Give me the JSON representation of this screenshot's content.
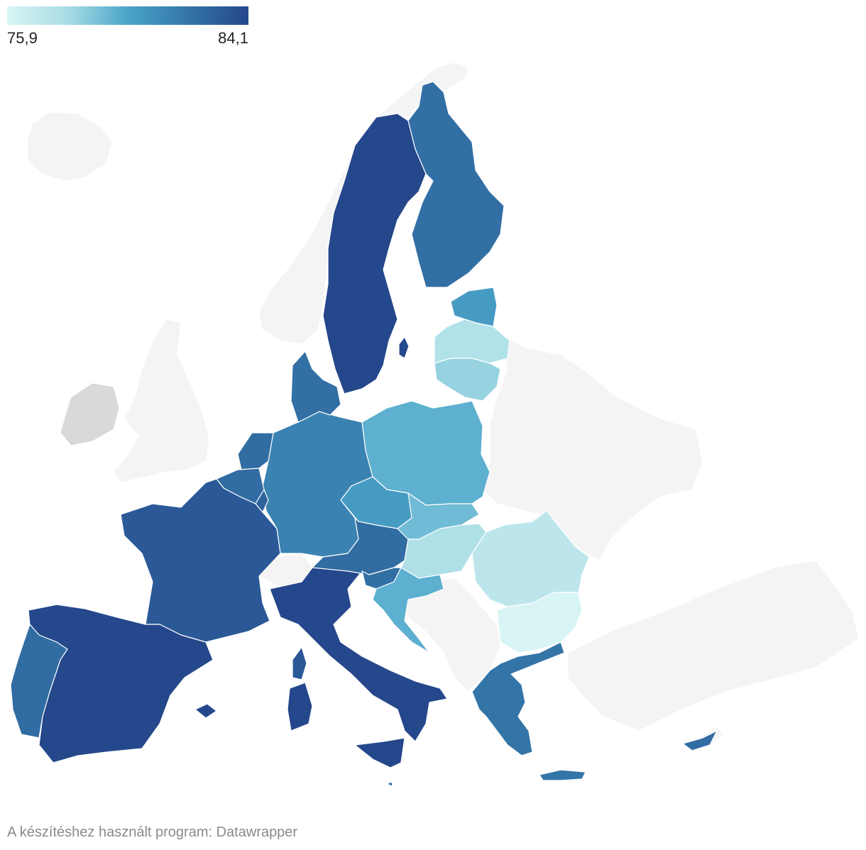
{
  "legend": {
    "min_label": "75,9",
    "max_label": "84,1",
    "min_value": 75.9,
    "max_value": 84.1,
    "stops": [
      "#d8f4f4",
      "#a9dde6",
      "#4aa5c9",
      "#3475a8",
      "#25478b"
    ]
  },
  "footer": {
    "credit": "A készítéshez használt program: Datawrapper"
  },
  "colors": {
    "no_data": "#f4f4f4",
    "ireland": "#d9d9d9",
    "border": "#ffffff"
  },
  "regions": [
    {
      "id": "sweden",
      "shade": 1.0
    },
    {
      "id": "finland",
      "shade": 0.78
    },
    {
      "id": "estonia",
      "shade": 0.55
    },
    {
      "id": "latvia",
      "shade": 0.2
    },
    {
      "id": "lithuania",
      "shade": 0.3
    },
    {
      "id": "poland",
      "shade": 0.45
    },
    {
      "id": "germany",
      "shade": 0.68
    },
    {
      "id": "denmark",
      "shade": 0.78
    },
    {
      "id": "netherlands",
      "shade": 0.8
    },
    {
      "id": "belgium",
      "shade": 0.8
    },
    {
      "id": "luxembourg",
      "shade": 0.85
    },
    {
      "id": "france",
      "shade": 0.9
    },
    {
      "id": "spain",
      "shade": 1.0
    },
    {
      "id": "portugal",
      "shade": 0.8
    },
    {
      "id": "italy",
      "shade": 1.0
    },
    {
      "id": "sicily",
      "shade": 1.0
    },
    {
      "id": "sardinia",
      "shade": 1.0
    },
    {
      "id": "corsica",
      "shade": 0.9
    },
    {
      "id": "czechia",
      "shade": 0.55
    },
    {
      "id": "austria",
      "shade": 0.8
    },
    {
      "id": "slovakia",
      "shade": 0.4
    },
    {
      "id": "hungary",
      "shade": 0.22
    },
    {
      "id": "slovenia",
      "shade": 0.78
    },
    {
      "id": "croatia",
      "shade": 0.45
    },
    {
      "id": "romania",
      "shade": 0.15
    },
    {
      "id": "bulgaria",
      "shade": 0.0
    },
    {
      "id": "greece",
      "shade": 0.75
    },
    {
      "id": "crete",
      "shade": 0.75
    },
    {
      "id": "cyprus",
      "shade": 0.8
    },
    {
      "id": "malta",
      "shade": 0.9
    },
    {
      "id": "mallorca",
      "shade": 1.0
    },
    {
      "id": "gotland",
      "shade": 1.0
    }
  ]
}
